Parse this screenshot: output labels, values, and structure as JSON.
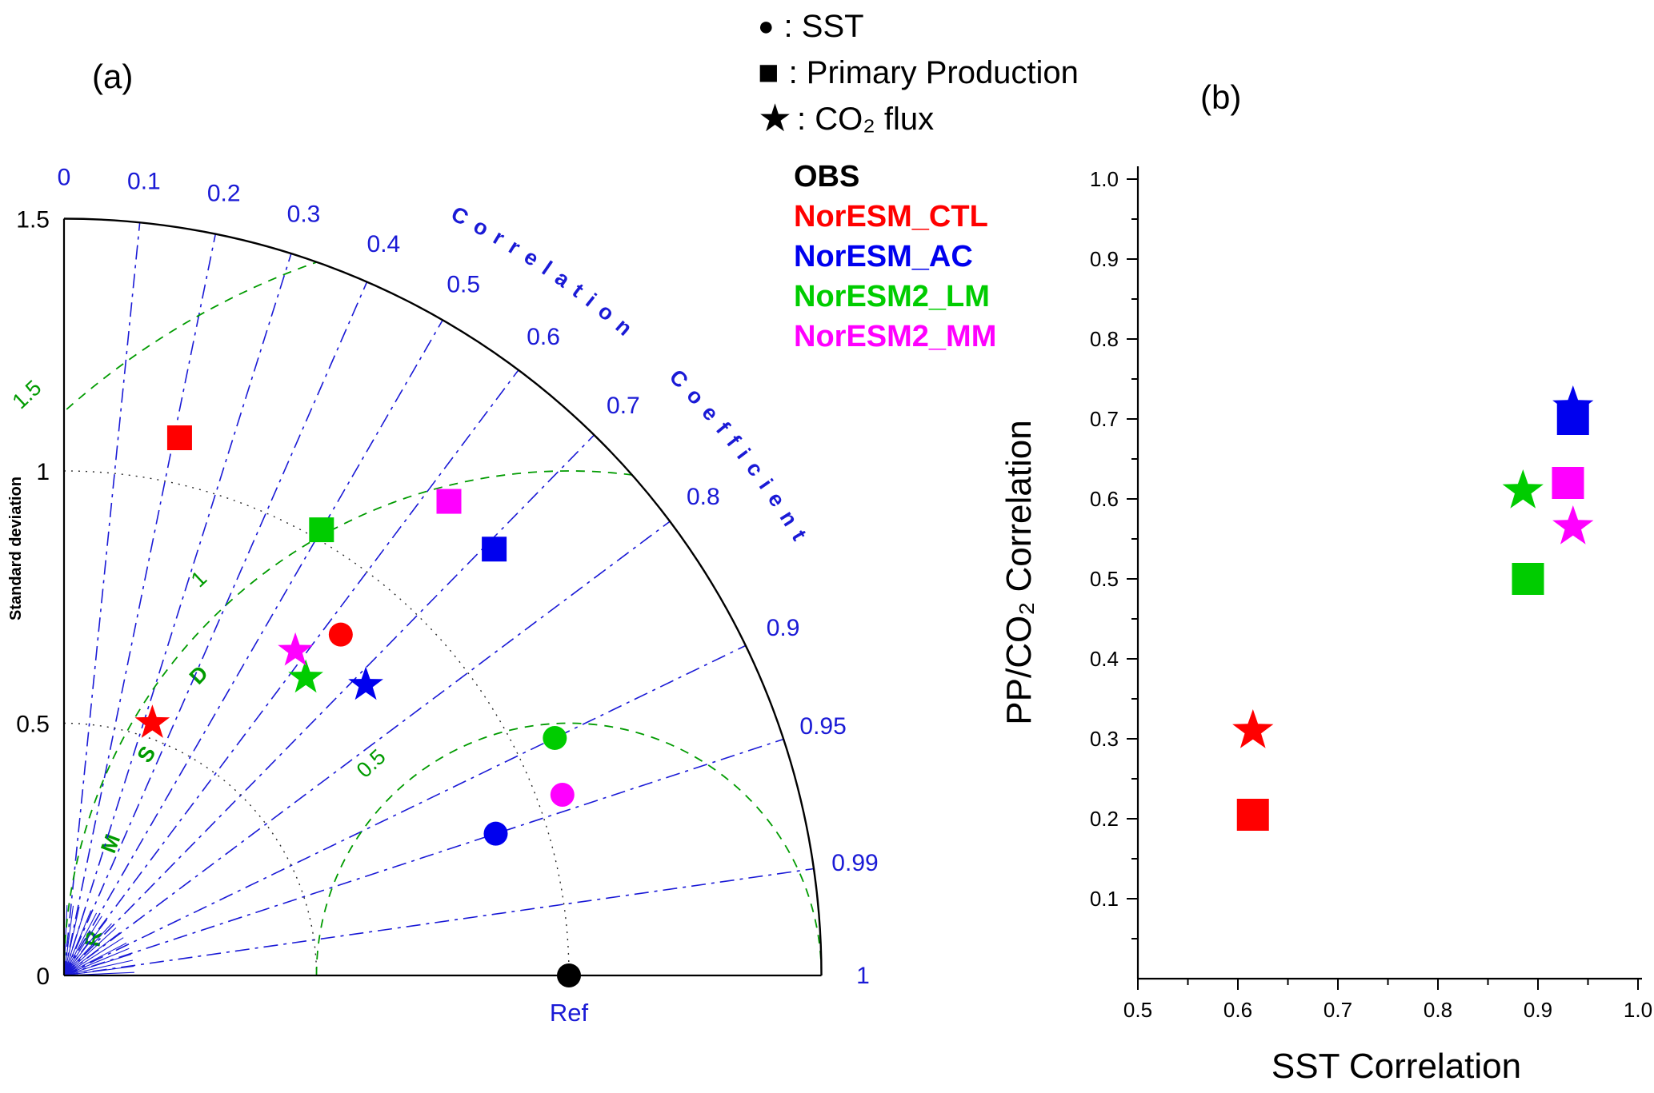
{
  "figure": {
    "panel_a_label": "(a)",
    "panel_b_label": "(b)"
  },
  "colors": {
    "blue": "#1a1ad6",
    "green": "#009b00",
    "black": "#000000",
    "red": "#ff0000",
    "model_blue": "#0000ee",
    "model_green": "#00cc00",
    "magenta": "#ff00ff"
  },
  "marker_legend": {
    "items": [
      {
        "marker": "circle",
        "glyph": "●",
        "label": ": SST"
      },
      {
        "marker": "square",
        "glyph": "■",
        "label": ": Primary Production"
      },
      {
        "marker": "star",
        "glyph": "★",
        "label": ": CO₂ flux"
      }
    ]
  },
  "model_legend": {
    "items": [
      {
        "name": "OBS",
        "color": "#000000"
      },
      {
        "name": "NorESM_CTL",
        "color": "#ff0000"
      },
      {
        "name": "NorESM_AC",
        "color": "#0000ee"
      },
      {
        "name": "NorESM2_LM",
        "color": "#00cc00"
      },
      {
        "name": "NorESM2_MM",
        "color": "#ff00ff"
      }
    ]
  },
  "chart_data": [
    {
      "type": "taylor",
      "ylabel": "Standard deviation",
      "std_max": 1.5,
      "std_ticks": [
        0,
        0.5,
        1,
        1.5
      ],
      "std_arcs": [
        0.5,
        1
      ],
      "corr_ticks": [
        0,
        0.1,
        0.2,
        0.3,
        0.4,
        0.5,
        0.6,
        0.7,
        0.8,
        0.9,
        0.95,
        0.99,
        1
      ],
      "corr_axis_label": "Correlation Coefficient",
      "rmsd_label": "RMSD",
      "rmsd_arcs": [
        {
          "value": 0.5,
          "label": "0.5"
        },
        {
          "value": 1,
          "label": "1"
        },
        {
          "value": 1.5,
          "label": "1.5"
        }
      ],
      "ref": {
        "label": "Ref",
        "std": 1.0
      },
      "points": [
        {
          "model": "OBS",
          "variable": "SST",
          "marker": "circle",
          "color": "#000000",
          "std": 1.0,
          "corr": 1.0
        },
        {
          "model": "NorESM_CTL",
          "variable": "SST",
          "marker": "circle",
          "color": "#ff0000",
          "std": 0.87,
          "corr": 0.63
        },
        {
          "model": "NorESM_CTL",
          "variable": "Primary Production",
          "marker": "square",
          "color": "#ff0000",
          "std": 1.09,
          "corr": 0.21
        },
        {
          "model": "NorESM_CTL",
          "variable": "CO2 flux",
          "marker": "star",
          "color": "#ff0000",
          "std": 0.53,
          "corr": 0.33
        },
        {
          "model": "NorESM_AC",
          "variable": "SST",
          "marker": "circle",
          "color": "#0000ee",
          "std": 0.9,
          "corr": 0.95
        },
        {
          "model": "NorESM_AC",
          "variable": "Primary Production",
          "marker": "square",
          "color": "#0000ee",
          "std": 1.2,
          "corr": 0.71
        },
        {
          "model": "NorESM_AC",
          "variable": "CO2 flux",
          "marker": "star",
          "color": "#0000ee",
          "std": 0.83,
          "corr": 0.72
        },
        {
          "model": "NorESM2_LM",
          "variable": "SST",
          "marker": "circle",
          "color": "#00cc00",
          "std": 1.08,
          "corr": 0.9
        },
        {
          "model": "NorESM2_LM",
          "variable": "Primary Production",
          "marker": "square",
          "color": "#00cc00",
          "std": 1.02,
          "corr": 0.5
        },
        {
          "model": "NorESM2_LM",
          "variable": "CO2 flux",
          "marker": "star",
          "color": "#00cc00",
          "std": 0.76,
          "corr": 0.63
        },
        {
          "model": "NorESM2_MM",
          "variable": "SST",
          "marker": "circle",
          "color": "#ff00ff",
          "std": 1.05,
          "corr": 0.94
        },
        {
          "model": "NorESM2_MM",
          "variable": "Primary Production",
          "marker": "square",
          "color": "#ff00ff",
          "std": 1.21,
          "corr": 0.63
        },
        {
          "model": "NorESM2_MM",
          "variable": "CO2 flux",
          "marker": "star",
          "color": "#ff00ff",
          "std": 0.79,
          "corr": 0.58
        }
      ]
    },
    {
      "type": "scatter",
      "xlabel": "SST Correlation",
      "ylabel": "PP/CO₂ Correlation",
      "xlim": [
        0.5,
        1.0
      ],
      "ylim": [
        0,
        1.0
      ],
      "xticks": [
        "0.5",
        "0.6",
        "0.7",
        "0.8",
        "0.9",
        "1.0"
      ],
      "yticks": [
        "0.1",
        "0.2",
        "0.3",
        "0.4",
        "0.5",
        "0.6",
        "0.7",
        "0.8",
        "0.9",
        "1.0"
      ],
      "points": [
        {
          "model": "NorESM_CTL",
          "variable": "Primary Production",
          "marker": "square",
          "color": "#ff0000",
          "x": 0.615,
          "y": 0.205
        },
        {
          "model": "NorESM_CTL",
          "variable": "CO2 flux",
          "marker": "star",
          "color": "#ff0000",
          "x": 0.615,
          "y": 0.31
        },
        {
          "model": "NorESM2_LM",
          "variable": "Primary Production",
          "marker": "square",
          "color": "#00cc00",
          "x": 0.89,
          "y": 0.5
        },
        {
          "model": "NorESM2_LM",
          "variable": "CO2 flux",
          "marker": "star",
          "color": "#00cc00",
          "x": 0.885,
          "y": 0.61
        },
        {
          "model": "NorESM2_MM",
          "variable": "CO2 flux",
          "marker": "star",
          "color": "#ff00ff",
          "x": 0.935,
          "y": 0.565
        },
        {
          "model": "NorESM2_MM",
          "variable": "Primary Production",
          "marker": "square",
          "color": "#ff00ff",
          "x": 0.93,
          "y": 0.62
        },
        {
          "model": "NorESM_AC",
          "variable": "CO2 flux",
          "marker": "star",
          "color": "#0000ee",
          "x": 0.935,
          "y": 0.715
        },
        {
          "model": "NorESM_AC",
          "variable": "Primary Production",
          "marker": "square",
          "color": "#0000ee",
          "x": 0.935,
          "y": 0.7
        }
      ]
    }
  ]
}
